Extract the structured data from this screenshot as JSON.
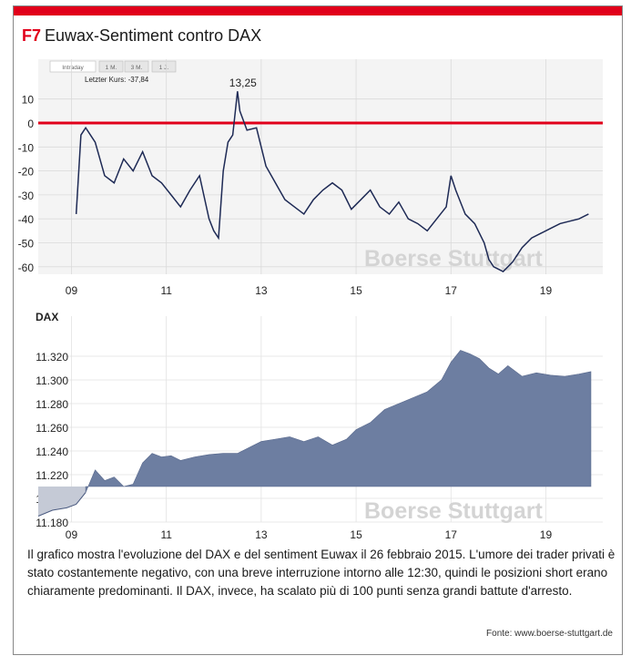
{
  "figure": {
    "label": "F7",
    "title": "Euwax-Sentiment contro DAX",
    "caption": "Il grafico mostra l'evoluzione del DAX e del sentiment Euwax il 26 febbraio 2015. L'umore dei trader privati è stato costantemente negativo, con una breve interruzione intorno alle 12:30, quindi le posizioni short erano chiaramente predominanti. Il DAX, invece, ha scalato più di 100 punti senza grandi battute d'arresto.",
    "source": "Fonte: www.boerse-stuttgart.de"
  },
  "tabs": [
    "Intraday",
    "1 M.",
    "3 M.",
    "1 J."
  ],
  "watermark": "Boerse Stuttgart",
  "colors": {
    "accent": "#e1001a",
    "sentiment_line": "#1e2a55",
    "dax_fill": "#6d7ea1",
    "dax_pre_fill": "#c5cad6"
  },
  "chart_data": [
    {
      "type": "line",
      "annotation_last": "Letzter Kurs: -37,84",
      "peak_label": "13,25",
      "x_ticks": [
        "09",
        "11",
        "13",
        "15",
        "17",
        "19"
      ],
      "y_ticks": [
        "10",
        "0",
        "-10",
        "-20",
        "-30",
        "-40",
        "-50",
        "-60"
      ],
      "ylim": [
        -65,
        15
      ],
      "xlim": [
        8.3,
        20.2
      ],
      "reference_line": 0,
      "grid": true,
      "x": [
        9.1,
        9.2,
        9.3,
        9.5,
        9.7,
        9.9,
        10.1,
        10.3,
        10.5,
        10.7,
        10.9,
        11.1,
        11.3,
        11.5,
        11.7,
        11.9,
        12.0,
        12.1,
        12.2,
        12.3,
        12.4,
        12.5,
        12.55,
        12.7,
        12.9,
        13.1,
        13.3,
        13.5,
        13.7,
        13.9,
        14.1,
        14.3,
        14.5,
        14.7,
        14.9,
        15.1,
        15.3,
        15.5,
        15.7,
        15.9,
        16.1,
        16.3,
        16.5,
        16.7,
        16.9,
        17.0,
        17.1,
        17.3,
        17.5,
        17.7,
        17.8,
        17.9,
        18.1,
        18.3,
        18.5,
        18.7,
        18.9,
        19.1,
        19.3,
        19.5,
        19.7,
        19.9
      ],
      "y": [
        -38,
        -5,
        -2,
        -8,
        -22,
        -25,
        -15,
        -20,
        -12,
        -22,
        -25,
        -30,
        -35,
        -28,
        -22,
        -40,
        -45,
        -48,
        -20,
        -8,
        -5,
        13.25,
        5,
        -3,
        -2,
        -18,
        -25,
        -32,
        -35,
        -38,
        -32,
        -28,
        -25,
        -28,
        -36,
        -32,
        -28,
        -35,
        -38,
        -33,
        -40,
        -42,
        -45,
        -40,
        -35,
        -22,
        -28,
        -38,
        -42,
        -50,
        -57,
        -60,
        -62,
        -58,
        -52,
        -48,
        -46,
        -44,
        -42,
        -41,
        -40,
        -38
      ]
    },
    {
      "type": "area",
      "ylabel": "DAX",
      "x_ticks": [
        "09",
        "11",
        "13",
        "15",
        "17",
        "19"
      ],
      "y_ticks": [
        "11.320",
        "11.300",
        "11.280",
        "11.260",
        "11.240",
        "11.220",
        "11.200",
        "11.180"
      ],
      "ylim": [
        11180,
        11330
      ],
      "xlim": [
        8.3,
        20.2
      ],
      "baseline": 11210,
      "grid": true,
      "x": [
        8.3,
        8.6,
        8.9,
        9.1,
        9.3,
        9.5,
        9.7,
        9.9,
        10.1,
        10.3,
        10.5,
        10.7,
        10.9,
        11.1,
        11.3,
        11.6,
        11.9,
        12.2,
        12.5,
        12.8,
        13.0,
        13.3,
        13.6,
        13.9,
        14.2,
        14.5,
        14.8,
        15.0,
        15.3,
        15.6,
        15.9,
        16.2,
        16.5,
        16.8,
        17.0,
        17.2,
        17.4,
        17.6,
        17.8,
        18.0,
        18.2,
        18.5,
        18.8,
        19.1,
        19.4,
        19.7,
        19.95
      ],
      "y": [
        11185,
        11190,
        11192,
        11195,
        11205,
        11224,
        11215,
        11218,
        11210,
        11212,
        11230,
        11238,
        11235,
        11236,
        11232,
        11235,
        11237,
        11238,
        11238,
        11244,
        11248,
        11250,
        11252,
        11248,
        11252,
        11245,
        11250,
        11258,
        11264,
        11275,
        11280,
        11285,
        11290,
        11300,
        11315,
        11325,
        11322,
        11318,
        11310,
        11305,
        11312,
        11303,
        11306,
        11304,
        11303,
        11305,
        11307
      ]
    }
  ]
}
